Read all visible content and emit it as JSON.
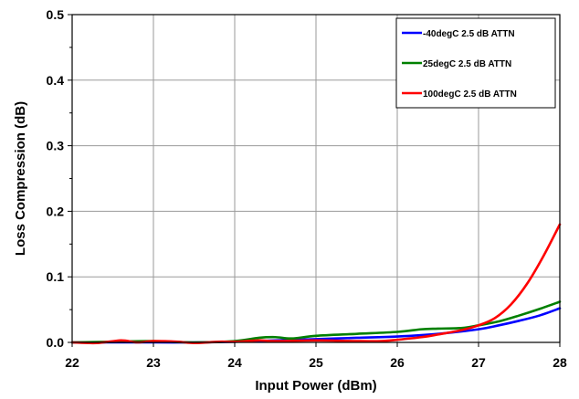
{
  "chart_data": {
    "type": "line",
    "title": "",
    "xlabel": "Input Power (dBm)",
    "ylabel": "Loss Compression (dB)",
    "xlim": [
      22,
      28
    ],
    "ylim": [
      0,
      0.5
    ],
    "x_ticks": [
      "22",
      "23",
      "24",
      "25",
      "26",
      "27",
      "28"
    ],
    "y_ticks": [
      "0.0",
      "0.1",
      "0.2",
      "0.3",
      "0.4",
      "0.5"
    ],
    "grid": true,
    "legend_position": "top-right",
    "series": [
      {
        "name": "-40degC 2.5 dB ATTN",
        "color": "#0000ff",
        "x": [
          22,
          22.5,
          23,
          23.5,
          24,
          24.5,
          25,
          25.5,
          26,
          26.5,
          27,
          27.25,
          27.5,
          27.75,
          28
        ],
        "y": [
          0,
          0,
          0,
          0,
          0.001,
          0.003,
          0.005,
          0.007,
          0.009,
          0.013,
          0.02,
          0.026,
          0.033,
          0.041,
          0.052
        ]
      },
      {
        "name": "25degC 2.5 dB ATTN",
        "color": "#008000",
        "x": [
          22,
          22.5,
          23,
          23.5,
          24,
          24.3,
          24.5,
          24.7,
          25,
          25.5,
          26,
          26.3,
          26.5,
          26.8,
          27,
          27.25,
          27.5,
          27.75,
          28
        ],
        "y": [
          0,
          0.001,
          0.002,
          0,
          0.002,
          0.007,
          0.008,
          0.006,
          0.01,
          0.013,
          0.016,
          0.02,
          0.021,
          0.022,
          0.026,
          0.032,
          0.041,
          0.051,
          0.062
        ]
      },
      {
        "name": "100degC 2.5 dB ATTN",
        "color": "#ff0000",
        "x": [
          22,
          22.3,
          22.6,
          22.8,
          23,
          23.3,
          23.5,
          23.8,
          24,
          24.3,
          24.5,
          25,
          25.5,
          25.8,
          26,
          26.3,
          26.5,
          26.8,
          27,
          27.2,
          27.4,
          27.6,
          27.8,
          28
        ],
        "y": [
          0,
          -0.001,
          0.003,
          0,
          0.002,
          0.001,
          -0.001,
          0.001,
          0.001,
          0.003,
          0.002,
          0.003,
          0.002,
          0.002,
          0.004,
          0.008,
          0.012,
          0.019,
          0.026,
          0.037,
          0.058,
          0.09,
          0.132,
          0.18
        ]
      }
    ]
  }
}
